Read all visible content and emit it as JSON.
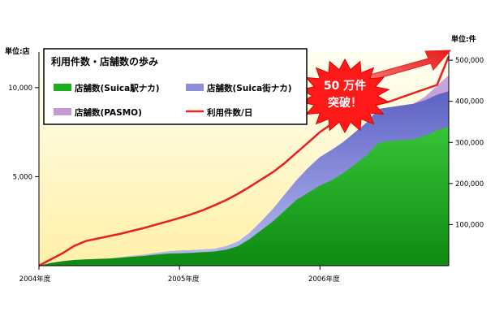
{
  "chart_data": {
    "type": "area",
    "title": "利用件数・店舗数の歩み",
    "left_axis": {
      "unit": "単位:店",
      "ticks": [
        5000,
        10000
      ],
      "tick_labels": [
        "5,000",
        "10,000"
      ],
      "range": [
        0,
        12000
      ]
    },
    "right_axis": {
      "unit": "単位:件",
      "ticks": [
        100000,
        200000,
        300000,
        400000,
        500000
      ],
      "tick_labels": [
        "100,000",
        "200,000",
        "300,000",
        "400,000",
        "500,000"
      ],
      "range": [
        0,
        520000
      ]
    },
    "x_labels": [
      "2004年度",
      "2005年度",
      "2006年度"
    ],
    "x_label_months": [
      0,
      12,
      24
    ],
    "x": [
      0,
      1,
      2,
      3,
      4,
      5,
      6,
      7,
      8,
      9,
      10,
      11,
      12,
      13,
      14,
      15,
      16,
      17,
      18,
      19,
      20,
      21,
      22,
      23,
      24,
      25,
      26,
      27,
      28,
      29,
      30,
      31,
      32,
      33,
      34,
      35
    ],
    "series": [
      {
        "name": "店舗数(Suica駅ナカ)",
        "axis": "left",
        "color": "#1fae1f",
        "values": [
          0,
          150,
          250,
          320,
          350,
          380,
          400,
          450,
          500,
          550,
          620,
          680,
          700,
          720,
          760,
          800,
          900,
          1100,
          1500,
          2000,
          2500,
          3100,
          3700,
          4100,
          4500,
          4800,
          5200,
          5700,
          6200,
          6900,
          7000,
          7050,
          7100,
          7300,
          7600,
          7800
        ]
      },
      {
        "name": "店舗数(Suica街ナカ)",
        "axis": "left",
        "color": "#8b8fd9",
        "values": [
          0,
          0,
          0,
          0,
          0,
          0,
          0,
          30,
          60,
          80,
          100,
          120,
          150,
          150,
          150,
          150,
          200,
          250,
          350,
          500,
          700,
          900,
          1100,
          1400,
          1600,
          1700,
          1750,
          1800,
          1850,
          1900,
          1900,
          1950,
          2000,
          2000,
          2000,
          2000
        ]
      },
      {
        "name": "店舗数(PASMO)",
        "axis": "left",
        "color": "#c49ad6",
        "values": [
          0,
          0,
          0,
          0,
          0,
          0,
          0,
          0,
          0,
          0,
          0,
          0,
          0,
          0,
          0,
          0,
          0,
          0,
          0,
          0,
          0,
          0,
          0,
          0,
          0,
          0,
          0,
          0,
          0,
          0,
          0,
          0,
          0,
          200,
          500,
          900
        ]
      },
      {
        "name": "利用件数/日",
        "axis": "right",
        "color": "#e8201f",
        "values": [
          0,
          15000,
          30000,
          48000,
          60000,
          66000,
          72000,
          78000,
          85000,
          92000,
          100000,
          108000,
          116000,
          125000,
          135000,
          147000,
          160000,
          175000,
          192000,
          210000,
          228000,
          250000,
          275000,
          300000,
          325000,
          345000,
          360000,
          375000,
          385000,
          393000,
          400000,
          410000,
          420000,
          430000,
          440000,
          510000
        ]
      }
    ],
    "legend_position": "top-left",
    "annotation": "50 万件\n突破！",
    "colors": {
      "plot_bg_top": "#fffff2",
      "plot_bg_bottom": "#fff0a8",
      "arrow": "#ef2b2b",
      "starburst": "#ff1a1a"
    }
  }
}
